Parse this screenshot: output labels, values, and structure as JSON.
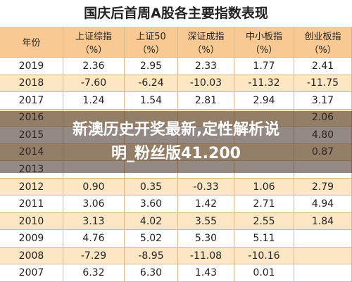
{
  "title": "国庆后首周A股各主要指数表现",
  "table": {
    "header": [
      {
        "name": "年份"
      },
      {
        "name": "上证综指",
        "unit": "（%）"
      },
      {
        "name": "上证50",
        "unit": "（%）"
      },
      {
        "name": "深证成指",
        "unit": "（%）"
      },
      {
        "name": "中小板指",
        "unit": "（%）"
      },
      {
        "name": "创业板指",
        "unit": "（%）"
      }
    ],
    "rows": [
      [
        "2019",
        "2.36",
        "2.95",
        "2.33",
        "1.77",
        "2.41"
      ],
      [
        "2018",
        "-7.60",
        "-6.24",
        "-10.03",
        "-11.32",
        "-11.75"
      ],
      [
        "2017",
        "1.24",
        "1.54",
        "2.81",
        "2.94",
        "3.17"
      ],
      [
        "2016",
        null,
        null,
        null,
        null,
        "2.06"
      ],
      [
        "2015",
        null,
        null,
        null,
        null,
        "4.80"
      ],
      [
        "2014",
        null,
        null,
        null,
        null,
        "0.87"
      ],
      [
        "2013",
        null,
        null,
        null,
        null,
        null
      ],
      [
        "2012",
        "0.90",
        "0.35",
        "-0.33",
        "1.06",
        "2.79"
      ],
      [
        "2011",
        "3.06",
        "3.60",
        "1.42",
        "2.71",
        "4.94"
      ],
      [
        "2010",
        "3.13",
        "4.02",
        "3.55",
        "2.55",
        "1.84"
      ],
      [
        "2009",
        "4.76",
        "5.02",
        "5.30",
        "5.11",
        null
      ],
      [
        "2008",
        "-7.29",
        "-8.95",
        "-11.08",
        "-10.16",
        null
      ],
      [
        "2007",
        "6.32",
        "6.30",
        "1.43",
        "0.01",
        null
      ]
    ]
  },
  "overlay": {
    "line1": "新澳历史开奖最新,定性解析说",
    "line2": "明_粉丝版41.200"
  }
}
